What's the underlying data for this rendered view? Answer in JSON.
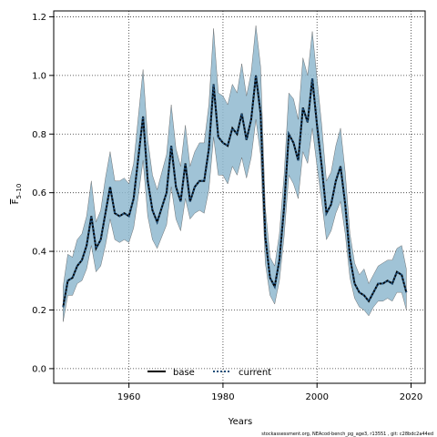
{
  "chart_data": {
    "type": "area",
    "xlabel": "Years",
    "ylabel": "F",
    "ylabel_sub": "5–10",
    "xlim": [
      1944,
      2023
    ],
    "ylim": [
      -0.05,
      1.22
    ],
    "xticks": [
      1960,
      1980,
      2000,
      2020
    ],
    "yticks": [
      0.0,
      0.2,
      0.4,
      0.6,
      0.8,
      1.0,
      1.2
    ],
    "ytick_labels": [
      "0.0",
      "0.2",
      "0.4",
      "0.6",
      "0.8",
      "1.0",
      "1.2"
    ],
    "grid": true,
    "legend_position": "bottom-center",
    "footnote": "stockassessment.org, NEAcod-bench_pg_age3, r13551 , git: c28bdc2a44ed",
    "colors": {
      "band": "#8fb8cf",
      "band_edge": "#555555",
      "current": "#1f4e79",
      "base": "#000000"
    },
    "x": [
      1946,
      1947,
      1948,
      1949,
      1950,
      1951,
      1952,
      1953,
      1954,
      1955,
      1956,
      1957,
      1958,
      1959,
      1960,
      1961,
      1962,
      1963,
      1964,
      1965,
      1966,
      1967,
      1968,
      1969,
      1970,
      1971,
      1972,
      1973,
      1974,
      1975,
      1976,
      1977,
      1978,
      1979,
      1980,
      1981,
      1982,
      1983,
      1984,
      1985,
      1986,
      1987,
      1988,
      1989,
      1990,
      1991,
      1992,
      1993,
      1994,
      1995,
      1996,
      1997,
      1998,
      1999,
      2000,
      2001,
      2002,
      2003,
      2004,
      2005,
      2006,
      2007,
      2008,
      2009,
      2010,
      2011,
      2012,
      2013,
      2014,
      2015,
      2016,
      2017,
      2018,
      2019
    ],
    "series": [
      {
        "name": "base",
        "values": [
          0.21,
          0.3,
          0.31,
          0.35,
          0.37,
          0.42,
          0.52,
          0.41,
          0.44,
          0.53,
          0.62,
          0.53,
          0.52,
          0.53,
          0.52,
          0.58,
          0.72,
          0.86,
          0.64,
          0.54,
          0.5,
          0.55,
          0.6,
          0.76,
          0.62,
          0.57,
          0.7,
          0.57,
          0.62,
          0.64,
          0.64,
          0.75,
          0.97,
          0.79,
          0.77,
          0.76,
          0.82,
          0.8,
          0.87,
          0.78,
          0.85,
          1.0,
          0.87,
          0.45,
          0.31,
          0.28,
          0.37,
          0.55,
          0.8,
          0.77,
          0.71,
          0.89,
          0.84,
          0.99,
          0.83,
          0.69,
          0.53,
          0.56,
          0.64,
          0.69,
          0.56,
          0.38,
          0.29,
          0.26,
          0.25,
          0.23,
          0.26,
          0.29,
          0.29,
          0.3,
          0.29,
          0.33,
          0.32,
          0.26
        ]
      },
      {
        "name": "current",
        "values": [
          0.21,
          0.3,
          0.31,
          0.35,
          0.37,
          0.42,
          0.52,
          0.41,
          0.44,
          0.53,
          0.62,
          0.53,
          0.52,
          0.53,
          0.52,
          0.58,
          0.72,
          0.86,
          0.64,
          0.54,
          0.5,
          0.55,
          0.6,
          0.76,
          0.62,
          0.57,
          0.7,
          0.57,
          0.62,
          0.64,
          0.64,
          0.75,
          0.97,
          0.79,
          0.77,
          0.76,
          0.82,
          0.8,
          0.87,
          0.78,
          0.85,
          1.0,
          0.87,
          0.45,
          0.31,
          0.28,
          0.37,
          0.55,
          0.8,
          0.77,
          0.71,
          0.89,
          0.84,
          0.99,
          0.83,
          0.69,
          0.53,
          0.56,
          0.64,
          0.69,
          0.56,
          0.38,
          0.29,
          0.26,
          0.25,
          0.23,
          0.26,
          0.29,
          0.29,
          0.3,
          0.29,
          0.33,
          0.32,
          0.26
        ]
      }
    ],
    "lower": [
      0.16,
      0.25,
      0.25,
      0.29,
      0.3,
      0.34,
      0.42,
      0.33,
      0.35,
      0.42,
      0.51,
      0.44,
      0.43,
      0.44,
      0.43,
      0.48,
      0.59,
      0.71,
      0.52,
      0.44,
      0.41,
      0.45,
      0.49,
      0.62,
      0.51,
      0.47,
      0.58,
      0.51,
      0.53,
      0.54,
      0.53,
      0.61,
      0.79,
      0.66,
      0.66,
      0.63,
      0.69,
      0.66,
      0.72,
      0.65,
      0.72,
      0.85,
      0.73,
      0.36,
      0.25,
      0.22,
      0.3,
      0.45,
      0.66,
      0.63,
      0.58,
      0.74,
      0.7,
      0.82,
      0.69,
      0.57,
      0.44,
      0.47,
      0.53,
      0.57,
      0.46,
      0.31,
      0.24,
      0.21,
      0.2,
      0.18,
      0.21,
      0.23,
      0.23,
      0.24,
      0.23,
      0.26,
      0.26,
      0.2
    ],
    "upper": [
      0.28,
      0.39,
      0.38,
      0.44,
      0.46,
      0.52,
      0.64,
      0.5,
      0.54,
      0.65,
      0.74,
      0.64,
      0.64,
      0.65,
      0.63,
      0.7,
      0.86,
      1.02,
      0.78,
      0.66,
      0.61,
      0.67,
      0.73,
      0.9,
      0.75,
      0.69,
      0.83,
      0.69,
      0.74,
      0.77,
      0.77,
      0.9,
      1.16,
      0.94,
      0.93,
      0.9,
      0.97,
      0.94,
      1.04,
      0.93,
      1.01,
      1.17,
      1.03,
      0.55,
      0.38,
      0.35,
      0.46,
      0.66,
      0.94,
      0.92,
      0.85,
      1.06,
      1.0,
      1.15,
      0.99,
      0.83,
      0.64,
      0.67,
      0.76,
      0.82,
      0.67,
      0.46,
      0.36,
      0.32,
      0.34,
      0.29,
      0.32,
      0.35,
      0.36,
      0.37,
      0.37,
      0.41,
      0.42,
      0.34
    ]
  }
}
